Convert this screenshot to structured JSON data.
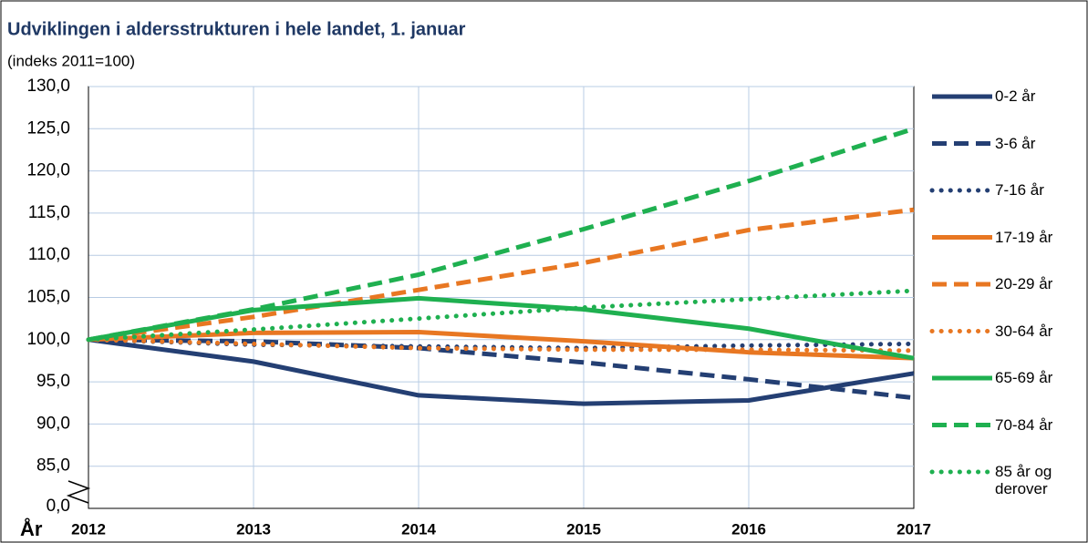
{
  "chart_data": {
    "type": "line",
    "title": "Udviklingen i aldersstrukturen i hele landet, 1. januar",
    "subtitle": "(indeks 2011=100)",
    "x_label": "År",
    "x": [
      2012,
      2013,
      2014,
      2015,
      2016,
      2017
    ],
    "xlim": [
      2012,
      2017
    ],
    "xticks": [
      2012,
      2013,
      2014,
      2015,
      2016,
      2017
    ],
    "ylim": [
      80,
      130
    ],
    "yticks": [
      {
        "value": 85,
        "label": "85,0"
      },
      {
        "value": 90,
        "label": "90,0"
      },
      {
        "value": 95,
        "label": "95,0"
      },
      {
        "value": 100,
        "label": "100,0"
      },
      {
        "value": 105,
        "label": "105,0"
      },
      {
        "value": 110,
        "label": "110,0"
      },
      {
        "value": 115,
        "label": "115,0"
      },
      {
        "value": 120,
        "label": "120,0"
      },
      {
        "value": 125,
        "label": "125,0"
      },
      {
        "value": 130,
        "label": "130,0"
      }
    ],
    "y_break_label": "0,0",
    "grid": true,
    "legend": "right",
    "series": [
      {
        "name": "0-2 år",
        "color": "#243f73",
        "dash": "solid",
        "values": [
          100,
          97.4,
          93.4,
          92.4,
          92.8,
          96.0
        ]
      },
      {
        "name": "3-6 år",
        "color": "#243f73",
        "dash": "dash",
        "values": [
          100,
          99.8,
          99.0,
          97.3,
          95.3,
          93.1
        ]
      },
      {
        "name": "7-16 år",
        "color": "#243f73",
        "dash": "dot",
        "values": [
          100,
          99.4,
          99.2,
          99.0,
          99.3,
          99.5
        ]
      },
      {
        "name": "17-19 år",
        "color": "#e87722",
        "dash": "solid",
        "values": [
          100,
          100.8,
          100.9,
          99.8,
          98.5,
          97.8
        ]
      },
      {
        "name": "20-29 år",
        "color": "#e87722",
        "dash": "dash",
        "values": [
          100,
          102.7,
          105.9,
          109.1,
          113.0,
          115.4
        ]
      },
      {
        "name": "30-64 år",
        "color": "#e87722",
        "dash": "dot",
        "values": [
          100,
          99.5,
          99.0,
          98.8,
          98.8,
          98.7
        ]
      },
      {
        "name": "65-69 år",
        "color": "#1fb050",
        "dash": "solid",
        "values": [
          100,
          103.5,
          104.9,
          103.6,
          101.3,
          97.8
        ]
      },
      {
        "name": "70-84 år",
        "color": "#1fb050",
        "dash": "dash",
        "values": [
          100,
          103.6,
          107.7,
          113.1,
          118.8,
          125.0
        ]
      },
      {
        "name": "85 år og derover",
        "color": "#1fb050",
        "dash": "dot",
        "values": [
          100,
          101.2,
          102.5,
          103.8,
          104.8,
          105.8
        ]
      }
    ]
  }
}
